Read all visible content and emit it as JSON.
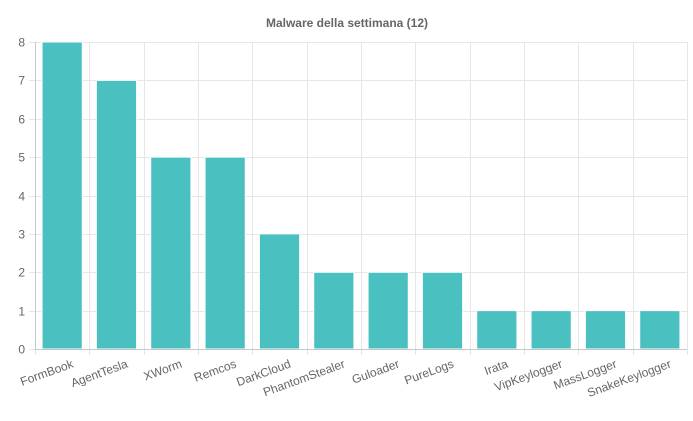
{
  "chart_data": {
    "type": "bar",
    "title": "Malware della settimana (12)",
    "categories": [
      "FormBook",
      "AgentTesla",
      "XWorm",
      "Remcos",
      "DarkCloud",
      "PhantomStealer",
      "Guloader",
      "PureLogs",
      "Irata",
      "VipKeylogger",
      "MassLogger",
      "SnakeKeylogger"
    ],
    "values": [
      8,
      7,
      5,
      5,
      3,
      2,
      2,
      2,
      1,
      1,
      1,
      1
    ],
    "ylim": [
      0,
      8
    ],
    "yticks": [
      0,
      1,
      2,
      3,
      4,
      5,
      6,
      7,
      8
    ],
    "grid": true,
    "legend": "none",
    "bar_color": "#4bc0c0",
    "bar_border_color": "#ffffff"
  }
}
